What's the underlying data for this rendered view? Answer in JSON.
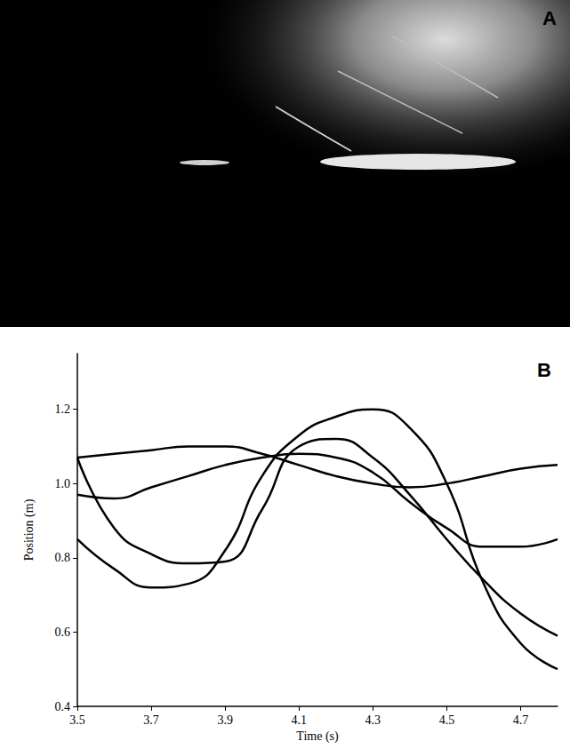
{
  "panel_a": {
    "label": "A"
  },
  "chart_data": {
    "type": "line",
    "panel_label": "B",
    "x_label": "Time (s)",
    "y_label": "Position (m)",
    "x": [
      3.5,
      3.6,
      3.7,
      3.8,
      3.9,
      4.0,
      4.1,
      4.2,
      4.3,
      4.4,
      4.5,
      4.6,
      4.7,
      4.8
    ],
    "series": [
      {
        "color": "#000000",
        "values": [
          1.07,
          1.08,
          1.09,
          1.1,
          1.1,
          1.08,
          1.05,
          1.02,
          1.0,
          0.99,
          1.0,
          1.02,
          1.04,
          1.05
        ]
      },
      {
        "color": "#000000",
        "values": [
          0.97,
          0.96,
          0.99,
          1.02,
          1.05,
          1.07,
          1.08,
          1.07,
          1.03,
          0.95,
          0.88,
          0.83,
          0.83,
          0.85
        ]
      },
      {
        "color": "#000000",
        "values": [
          1.07,
          0.88,
          0.81,
          0.785,
          0.79,
          0.93,
          1.1,
          1.12,
          1.07,
          0.97,
          0.85,
          0.74,
          0.65,
          0.59
        ]
      },
      {
        "color": "#000000",
        "values": [
          0.85,
          0.77,
          0.72,
          0.73,
          0.82,
          1.02,
          1.13,
          1.18,
          1.2,
          1.15,
          1.0,
          0.73,
          0.57,
          0.5
        ]
      }
    ],
    "xlim": [
      3.5,
      4.8
    ],
    "xticks": [
      3.5,
      3.7,
      3.9,
      4.1,
      4.3,
      4.5,
      4.7
    ],
    "ylim": [
      0.4,
      1.35
    ],
    "yticks": [
      0.4,
      0.6,
      0.8,
      {
        "value": 1.0,
        "label": "1.0"
      },
      1.2
    ],
    "grid": false
  }
}
